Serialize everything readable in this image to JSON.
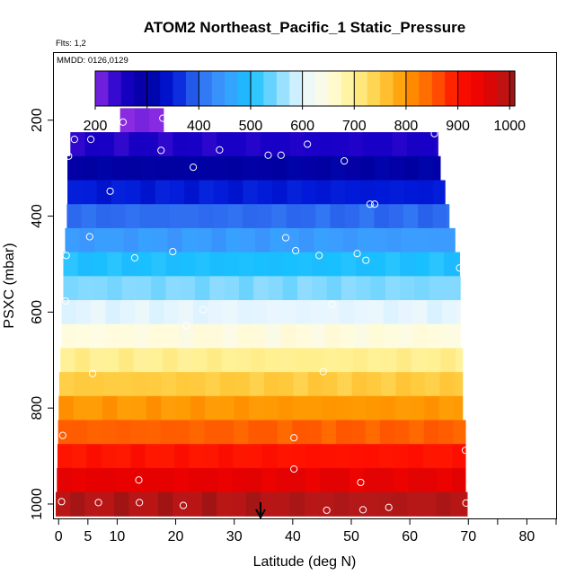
{
  "chart_data": {
    "type": "heatmap",
    "title": "ATOM2 Northeast_Pacific_1 Static_Pressure",
    "flights_label": "Flts: 1,2",
    "dates_label": "MMDD: 0126,0129",
    "xlabel": "Latitude (deg N)",
    "ylabel": "PSXC (mbar)",
    "xlim": [
      -0.5,
      85
    ],
    "ylim": [
      1030,
      60
    ],
    "x_ticks": [
      0,
      5,
      10,
      20,
      30,
      40,
      50,
      60,
      70,
      80
    ],
    "x_minor_ticks": [
      75,
      85
    ],
    "y_ticks": [
      200,
      400,
      600,
      800,
      1000
    ],
    "colorbar": {
      "min": 200,
      "max": 1010,
      "step": 25,
      "ticks": [
        200,
        300,
        400,
        500,
        600,
        700,
        800,
        900,
        1000
      ],
      "stops": [
        {
          "v": 200,
          "c": "#8a2be2"
        },
        {
          "v": 250,
          "c": "#1a00c8"
        },
        {
          "v": 300,
          "c": "#0000a0"
        },
        {
          "v": 350,
          "c": "#0018d8"
        },
        {
          "v": 400,
          "c": "#2f6ef0"
        },
        {
          "v": 450,
          "c": "#3c9cff"
        },
        {
          "v": 500,
          "c": "#18c0ff"
        },
        {
          "v": 550,
          "c": "#80d8ff"
        },
        {
          "v": 600,
          "c": "#e8f6ff"
        },
        {
          "v": 650,
          "c": "#fffce0"
        },
        {
          "v": 700,
          "c": "#fff090"
        },
        {
          "v": 750,
          "c": "#ffcc40"
        },
        {
          "v": 800,
          "c": "#ff9800"
        },
        {
          "v": 850,
          "c": "#ff6000"
        },
        {
          "v": 900,
          "c": "#ff1000"
        },
        {
          "v": 950,
          "c": "#e80000"
        },
        {
          "v": 1000,
          "c": "#b41818"
        },
        {
          "v": 1010,
          "c": "#a01414"
        }
      ]
    },
    "bands": [
      {
        "p": 200,
        "lat_min": 10.5,
        "lat_max": 17.9
      },
      {
        "p": 250,
        "lat_min": 2.0,
        "lat_max": 64.8
      },
      {
        "p": 300,
        "lat_min": 1.5,
        "lat_max": 65.2
      },
      {
        "p": 350,
        "lat_min": 1.5,
        "lat_max": 66.0
      },
      {
        "p": 400,
        "lat_min": 1.4,
        "lat_max": 66.7
      },
      {
        "p": 450,
        "lat_min": 1.1,
        "lat_max": 67.7
      },
      {
        "p": 500,
        "lat_min": 0.8,
        "lat_max": 68.5
      },
      {
        "p": 550,
        "lat_min": 0.8,
        "lat_max": 68.6
      },
      {
        "p": 600,
        "lat_min": 0.5,
        "lat_max": 68.6
      },
      {
        "p": 650,
        "lat_min": 0.5,
        "lat_max": 68.6
      },
      {
        "p": 700,
        "lat_min": 0.3,
        "lat_max": 69.0
      },
      {
        "p": 750,
        "lat_min": 0.1,
        "lat_max": 69.0
      },
      {
        "p": 800,
        "lat_min": 0.0,
        "lat_max": 69.0
      },
      {
        "p": 850,
        "lat_min": -0.1,
        "lat_max": 69.5
      },
      {
        "p": 900,
        "lat_min": -0.2,
        "lat_max": 69.5
      },
      {
        "p": 950,
        "lat_min": -0.3,
        "lat_max": 69.5
      },
      {
        "p": 1000,
        "lat_min": -0.5,
        "lat_max": 69.8
      }
    ],
    "points": [
      {
        "lat": 17.8,
        "p": 196
      },
      {
        "lat": 11.0,
        "p": 204
      },
      {
        "lat": 2.7,
        "p": 240
      },
      {
        "lat": 5.5,
        "p": 240
      },
      {
        "lat": 1.7,
        "p": 275
      },
      {
        "lat": 17.5,
        "p": 263
      },
      {
        "lat": 27.5,
        "p": 262
      },
      {
        "lat": 23.0,
        "p": 298
      },
      {
        "lat": 35.8,
        "p": 273
      },
      {
        "lat": 38.0,
        "p": 273
      },
      {
        "lat": 42.5,
        "p": 250
      },
      {
        "lat": 48.8,
        "p": 285
      },
      {
        "lat": 64.2,
        "p": 228
      },
      {
        "lat": 8.8,
        "p": 348
      },
      {
        "lat": 53.2,
        "p": 375
      },
      {
        "lat": 54.0,
        "p": 375
      },
      {
        "lat": 5.3,
        "p": 443
      },
      {
        "lat": 38.8,
        "p": 445
      },
      {
        "lat": 1.3,
        "p": 482
      },
      {
        "lat": 13.0,
        "p": 487
      },
      {
        "lat": 19.5,
        "p": 474
      },
      {
        "lat": 40.5,
        "p": 472
      },
      {
        "lat": 44.5,
        "p": 482
      },
      {
        "lat": 51.0,
        "p": 478
      },
      {
        "lat": 52.5,
        "p": 492
      },
      {
        "lat": 68.5,
        "p": 508
      },
      {
        "lat": 1.2,
        "p": 577
      },
      {
        "lat": 24.7,
        "p": 595
      },
      {
        "lat": 21.8,
        "p": 628
      },
      {
        "lat": 46.7,
        "p": 584
      },
      {
        "lat": 5.8,
        "p": 728
      },
      {
        "lat": 45.2,
        "p": 724
      },
      {
        "lat": 0.7,
        "p": 857
      },
      {
        "lat": 40.2,
        "p": 862
      },
      {
        "lat": 69.5,
        "p": 888
      },
      {
        "lat": 40.2,
        "p": 927
      },
      {
        "lat": 13.7,
        "p": 950
      },
      {
        "lat": 51.6,
        "p": 955
      },
      {
        "lat": 0.5,
        "p": 995
      },
      {
        "lat": 6.8,
        "p": 997
      },
      {
        "lat": 13.8,
        "p": 997
      },
      {
        "lat": 21.3,
        "p": 1003
      },
      {
        "lat": 45.8,
        "p": 1013
      },
      {
        "lat": 52.0,
        "p": 1012
      },
      {
        "lat": 56.4,
        "p": 1007
      },
      {
        "lat": 69.6,
        "p": 998
      }
    ],
    "arrow_lat": 34.5,
    "arrow_p": 1000
  }
}
